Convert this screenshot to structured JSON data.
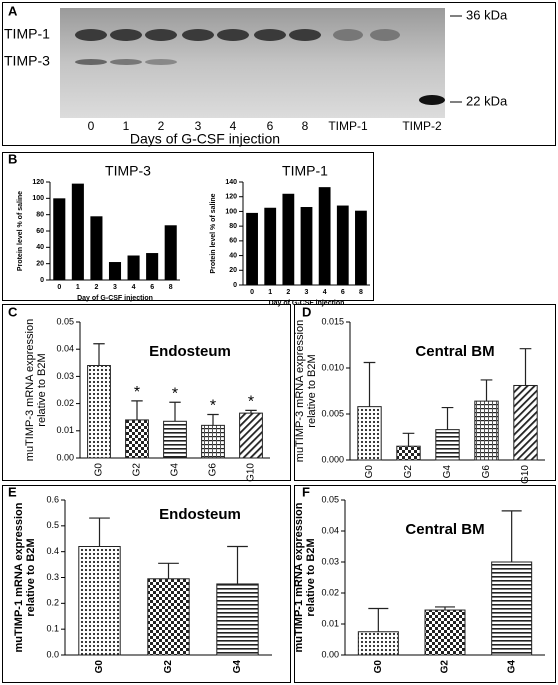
{
  "gel": {
    "panel": "A",
    "bands": [
      "TIMP-1",
      "TIMP-3"
    ],
    "markers": [
      "36 kDa",
      "22 kDa"
    ],
    "lanes": [
      "0",
      "1",
      "2",
      "3",
      "4",
      "6",
      "8",
      "TIMP-1",
      "TIMP-2"
    ],
    "xlabel": "Days of G-CSF injection"
  },
  "chart_data": [
    {
      "type": "bar",
      "panel": "B",
      "title": "TIMP-3",
      "ylabel": [
        "Protein level % of saline"
      ],
      "xlabel": "Day of G-CSF injection",
      "categories": [
        "0",
        "1",
        "2",
        "3",
        "4",
        "6",
        "8"
      ],
      "values": [
        100,
        118,
        78,
        22,
        30,
        33,
        67
      ],
      "color": "#000000",
      "ylim": [
        0,
        120
      ],
      "yticks": [
        0,
        20,
        40,
        60,
        80,
        100,
        120
      ]
    },
    {
      "type": "bar",
      "title": "TIMP-1",
      "ylabel": [
        "Protein level % of saline"
      ],
      "xlabel": "Day of G-CSF injection",
      "categories": [
        "0",
        "1",
        "2",
        "3",
        "4",
        "6",
        "8"
      ],
      "values": [
        98,
        105,
        124,
        106,
        133,
        108,
        101
      ],
      "color": "#000000",
      "ylim": [
        0,
        140
      ],
      "yticks": [
        0,
        20,
        40,
        60,
        80,
        100,
        120,
        140
      ]
    },
    {
      "type": "bar",
      "panel": "C",
      "title": "Endosteum",
      "ylabel": [
        "muTIMP-3 mRNA expression",
        "relative to B2M"
      ],
      "categories": [
        "G0",
        "G2",
        "G4",
        "G6",
        "G10"
      ],
      "values": [
        0.034,
        0.014,
        0.0135,
        0.012,
        0.0165
      ],
      "errors": [
        0.008,
        0.007,
        0.007,
        0.004,
        0.001
      ],
      "color": "#222222",
      "ylim": [
        0,
        0.05
      ],
      "yticks": [
        {
          "value": 0,
          "label": "0.00"
        },
        0.01,
        0.02,
        0.03,
        0.04,
        0.05
      ],
      "annotations": [
        {
          "category": "G2",
          "text": "*"
        },
        {
          "category": "G4",
          "text": "*"
        },
        {
          "category": "G6",
          "text": "*"
        },
        {
          "category": "G10",
          "text": "*"
        }
      ]
    },
    {
      "type": "bar",
      "panel": "D",
      "title": "Central BM",
      "ylabel": [
        "muTIMP-3 mRNA expression",
        "relative to B2M"
      ],
      "categories": [
        "G0",
        "G2",
        "G4",
        "G6",
        "G10"
      ],
      "values": [
        0.0058,
        0.0015,
        0.0033,
        0.0064,
        0.0081
      ],
      "errors": [
        0.0048,
        0.0014,
        0.0024,
        0.0023,
        0.004
      ],
      "color": "#222222",
      "ylim": [
        0,
        0.015
      ],
      "yticks": [
        {
          "value": 0,
          "label": "0.000"
        },
        0.005,
        {
          "value": 0.01,
          "label": "0.010"
        },
        0.015
      ]
    },
    {
      "type": "bar",
      "panel": "E",
      "title": "Endosteum",
      "ylabel": [
        "muTIMP-1 mRNA expression",
        "relative to B2M"
      ],
      "categories": [
        "G0",
        "G2",
        "G4"
      ],
      "values": [
        0.42,
        0.295,
        0.275
      ],
      "errors": [
        0.11,
        0.06,
        0.145
      ],
      "color": "#222222",
      "ylim": [
        0,
        0.6
      ],
      "yticks": [
        {
          "value": 0,
          "label": "0.0"
        },
        0.1,
        0.2,
        0.3,
        0.4,
        0.5,
        0.6
      ]
    },
    {
      "type": "bar",
      "panel": "F",
      "title": "Central BM",
      "ylabel": [
        "muTIMP-1 mRNA expression",
        "relative to B2M"
      ],
      "categories": [
        "G0",
        "G2",
        "G4"
      ],
      "values": [
        0.0075,
        0.0145,
        0.03
      ],
      "errors": [
        0.0075,
        0.001,
        0.0165
      ],
      "color": "#222222",
      "ylim": [
        0,
        0.05
      ],
      "yticks": [
        {
          "value": 0,
          "label": "0.00"
        },
        0.01,
        0.02,
        0.03,
        0.04,
        0.05
      ]
    }
  ]
}
